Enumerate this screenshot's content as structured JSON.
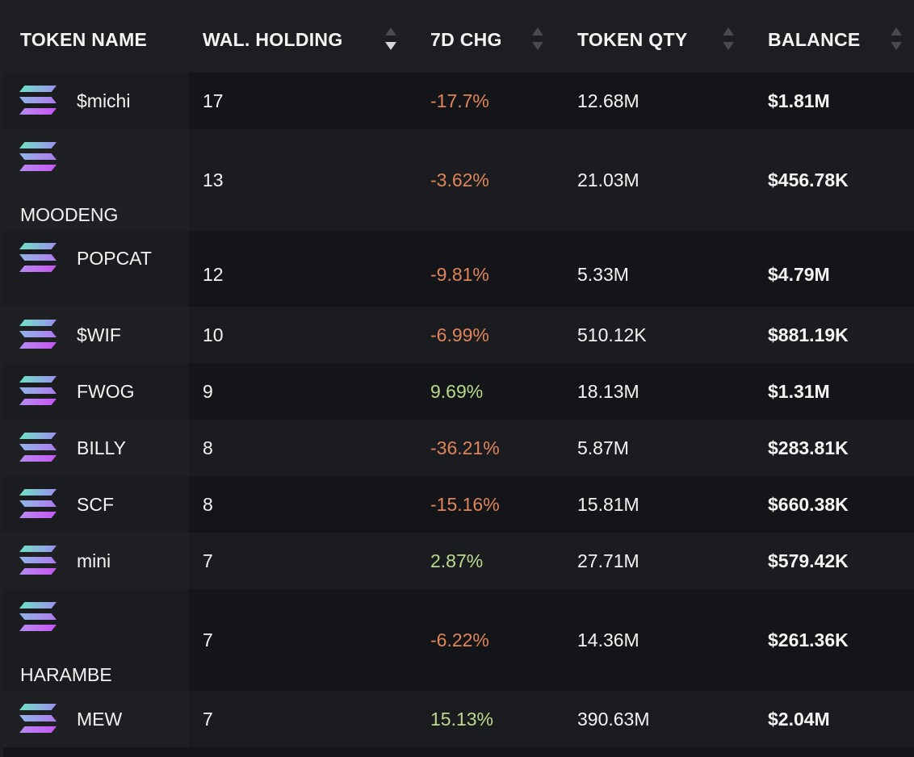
{
  "headers": [
    {
      "label": "TOKEN NAME",
      "sortable": false
    },
    {
      "label": "WAL. HOLDING",
      "sortable": true,
      "sorted": "desc"
    },
    {
      "label": "7D CHG",
      "sortable": true
    },
    {
      "label": "TOKEN QTY",
      "sortable": true
    },
    {
      "label": "BALANCE",
      "sortable": true
    }
  ],
  "rows": [
    {
      "name": "$michi",
      "holding": "17",
      "change": "-17.7%",
      "direction": "neg",
      "qty": "12.68M",
      "balance": "$1.81M"
    },
    {
      "name": "MOODENG",
      "holding": "13",
      "change": "-3.62%",
      "direction": "neg",
      "qty": "21.03M",
      "balance": "$456.78K"
    },
    {
      "name": "POPCAT",
      "holding": "12",
      "change": "-9.81%",
      "direction": "neg",
      "qty": "5.33M",
      "balance": "$4.79M"
    },
    {
      "name": "$WIF",
      "holding": "10",
      "change": "-6.99%",
      "direction": "neg",
      "qty": "510.12K",
      "balance": "$881.19K"
    },
    {
      "name": "FWOG",
      "holding": "9",
      "change": "9.69%",
      "direction": "pos",
      "qty": "18.13M",
      "balance": "$1.31M"
    },
    {
      "name": "BILLY",
      "holding": "8",
      "change": "-36.21%",
      "direction": "neg",
      "qty": "5.87M",
      "balance": "$283.81K"
    },
    {
      "name": "SCF",
      "holding": "8",
      "change": "-15.16%",
      "direction": "neg",
      "qty": "15.81M",
      "balance": "$660.38K"
    },
    {
      "name": "mini",
      "holding": "7",
      "change": "2.87%",
      "direction": "pos",
      "qty": "27.71M",
      "balance": "$579.42K"
    },
    {
      "name": "HARAMBE",
      "holding": "7",
      "change": "-6.22%",
      "direction": "neg",
      "qty": "14.36M",
      "balance": "$261.36K"
    },
    {
      "name": "MEW",
      "holding": "7",
      "change": "15.13%",
      "direction": "pos",
      "qty": "390.63M",
      "balance": "$2.04M"
    }
  ],
  "colors": {
    "negative": "#e0845a",
    "positive": "#b9da8c",
    "logo": "solana-icon"
  }
}
